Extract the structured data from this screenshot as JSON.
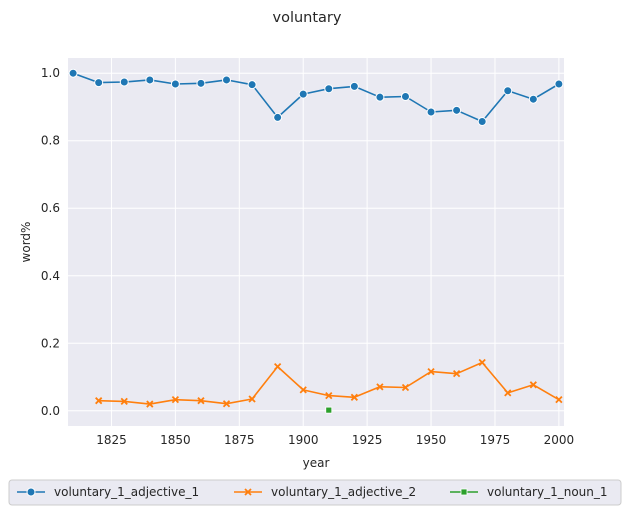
{
  "chart_data": {
    "type": "line",
    "title": "voluntary",
    "xlabel": "year",
    "ylabel": "word%",
    "xlim": [
      1808,
      2002
    ],
    "ylim": [
      -0.045,
      1.045
    ],
    "xticks": [
      1825,
      1850,
      1875,
      1900,
      1925,
      1950,
      1975,
      2000
    ],
    "yticks": [
      0.0,
      0.2,
      0.4,
      0.6,
      0.8,
      1.0
    ],
    "xtick_labels": [
      "1825",
      "1850",
      "1875",
      "1900",
      "1925",
      "1950",
      "1975",
      "2000"
    ],
    "ytick_labels": [
      "0.0",
      "0.2",
      "0.4",
      "0.6",
      "0.8",
      "1.0"
    ],
    "grid": true,
    "legend_position": "bottom",
    "series": [
      {
        "name": "voluntary_1_adjective_1",
        "color": "#1f77b4",
        "marker": "circle",
        "x": [
          1810,
          1820,
          1830,
          1840,
          1850,
          1860,
          1870,
          1880,
          1890,
          1900,
          1910,
          1920,
          1930,
          1940,
          1950,
          1960,
          1970,
          1980,
          1990,
          2000
        ],
        "y": [
          1.0,
          0.972,
          0.974,
          0.98,
          0.968,
          0.97,
          0.98,
          0.966,
          0.869,
          0.938,
          0.954,
          0.961,
          0.929,
          0.931,
          0.885,
          0.89,
          0.857,
          0.948,
          0.923,
          0.968
        ]
      },
      {
        "name": "voluntary_1_adjective_2",
        "color": "#ff7f0e",
        "marker": "x",
        "x": [
          1820,
          1830,
          1840,
          1850,
          1860,
          1870,
          1880,
          1890,
          1900,
          1910,
          1920,
          1930,
          1940,
          1950,
          1960,
          1970,
          1980,
          1990,
          2000
        ],
        "y": [
          0.03,
          0.028,
          0.02,
          0.033,
          0.03,
          0.021,
          0.035,
          0.131,
          0.062,
          0.045,
          0.04,
          0.071,
          0.069,
          0.116,
          0.11,
          0.143,
          0.053,
          0.077,
          0.033
        ]
      },
      {
        "name": "voluntary_1_noun_1",
        "color": "#2ca02c",
        "marker": "square",
        "x": [
          1910
        ],
        "y": [
          0.002
        ]
      }
    ]
  }
}
